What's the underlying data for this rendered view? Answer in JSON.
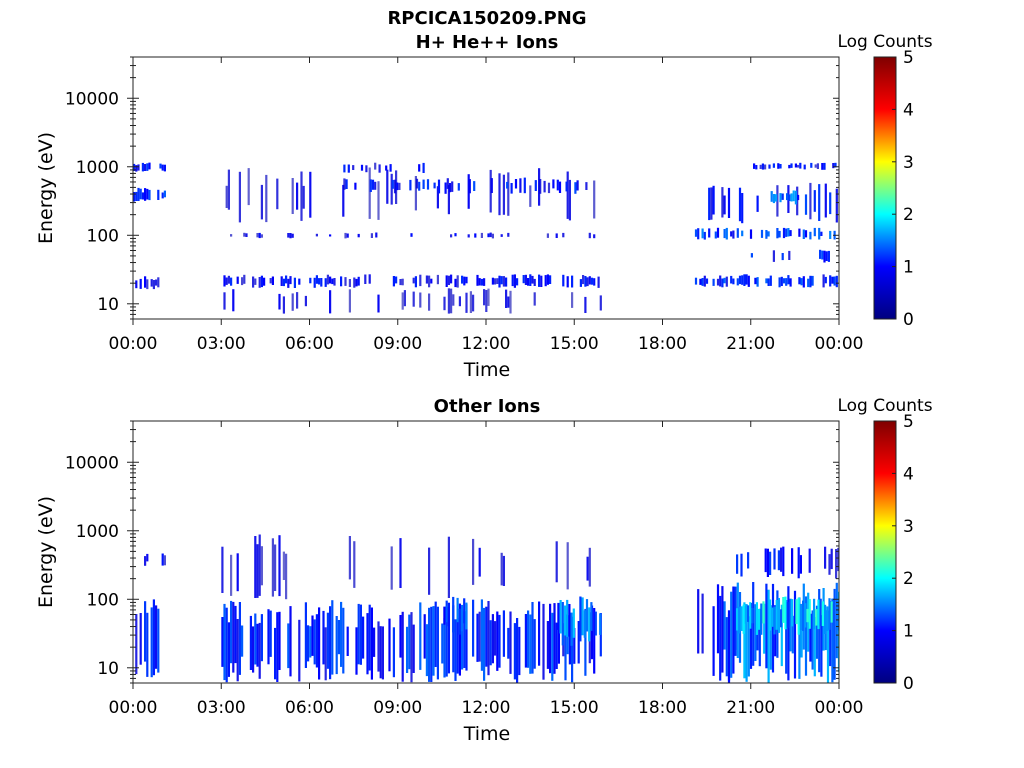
{
  "figure": {
    "file_title": "RPCICA150209.PNG"
  },
  "colorbar": {
    "label": "Log Counts",
    "ticks": [
      "0",
      "1",
      "2",
      "3",
      "4",
      "5"
    ],
    "range": [
      0,
      5
    ],
    "colormap": "jet",
    "colors": [
      "#00007f",
      "#0000ff",
      "#00ffff",
      "#ffff00",
      "#ff0000",
      "#7f0000"
    ]
  },
  "chart_data": [
    {
      "type": "heatmap",
      "title": "H+ He++ Ions",
      "xlabel": "Time",
      "ylabel": "Energy (eV)",
      "x_ticks": [
        "00:00",
        "03:00",
        "06:00",
        "09:00",
        "12:00",
        "15:00",
        "18:00",
        "21:00",
        "00:00"
      ],
      "x_range_hours": [
        0,
        24
      ],
      "y_scale": "log",
      "y_ticks": [
        "10",
        "100",
        "1000",
        "10000"
      ],
      "y_range": [
        6,
        40000
      ],
      "data_gaps_hours": [
        [
          1.1,
          3.0
        ],
        [
          15.9,
          19.1
        ]
      ],
      "bands": [
        {
          "t0": 0.0,
          "t1": 1.1,
          "e_lo": 16,
          "e_hi": 26,
          "level": 0.5,
          "density": 0.45
        },
        {
          "t0": 0.0,
          "t1": 1.1,
          "e_lo": 300,
          "e_hi": 500,
          "level": 0.8,
          "density": 0.6
        },
        {
          "t0": 0.0,
          "t1": 1.1,
          "e_lo": 850,
          "e_hi": 1150,
          "level": 0.7,
          "density": 0.7
        },
        {
          "t0": 3.0,
          "t1": 15.9,
          "e_lo": 17,
          "e_hi": 27,
          "level": 0.6,
          "density": 0.55
        },
        {
          "t0": 3.0,
          "t1": 15.9,
          "e_lo": 7,
          "e_hi": 17,
          "level": 0.4,
          "density": 0.18
        },
        {
          "t0": 3.0,
          "t1": 15.9,
          "e_lo": 90,
          "e_hi": 110,
          "level": 0.5,
          "density": 0.2
        },
        {
          "t0": 3.0,
          "t1": 15.9,
          "e_lo": 150,
          "e_hi": 1000,
          "level": 0.4,
          "density": 0.12
        },
        {
          "t0": 7.0,
          "t1": 10.0,
          "e_lo": 800,
          "e_hi": 1200,
          "level": 0.6,
          "density": 0.35
        },
        {
          "t0": 7.0,
          "t1": 15.6,
          "e_lo": 400,
          "e_hi": 700,
          "level": 0.7,
          "density": 0.3
        },
        {
          "t0": 19.1,
          "t1": 24.0,
          "e_lo": 17,
          "e_hi": 27,
          "level": 0.8,
          "density": 0.6
        },
        {
          "t0": 19.1,
          "t1": 24.0,
          "e_lo": 85,
          "e_hi": 130,
          "level": 0.9,
          "density": 0.45
        },
        {
          "t0": 19.1,
          "t1": 24.0,
          "e_lo": 150,
          "e_hi": 600,
          "level": 0.7,
          "density": 0.25
        },
        {
          "t0": 21.0,
          "t1": 24.0,
          "e_lo": 900,
          "e_hi": 1150,
          "level": 0.6,
          "density": 0.5
        },
        {
          "t0": 21.6,
          "t1": 22.6,
          "e_lo": 280,
          "e_hi": 450,
          "level": 1.0,
          "density": 0.85
        },
        {
          "t0": 21.0,
          "t1": 24.0,
          "e_lo": 40,
          "e_hi": 65,
          "level": 0.7,
          "density": 0.2
        }
      ]
    },
    {
      "type": "heatmap",
      "title": "Other Ions",
      "xlabel": "Time",
      "ylabel": "Energy (eV)",
      "x_ticks": [
        "00:00",
        "03:00",
        "06:00",
        "09:00",
        "12:00",
        "15:00",
        "18:00",
        "21:00",
        "00:00"
      ],
      "x_range_hours": [
        0,
        24
      ],
      "y_scale": "log",
      "y_ticks": [
        "10",
        "100",
        "1000",
        "10000"
      ],
      "y_range": [
        6,
        40000
      ],
      "data_gaps_hours": [
        [
          1.1,
          3.0
        ],
        [
          15.9,
          19.1
        ]
      ],
      "bands": [
        {
          "t0": 0.0,
          "t1": 1.1,
          "e_lo": 7,
          "e_hi": 100,
          "level": 0.7,
          "density": 0.65
        },
        {
          "t0": 0.0,
          "t1": 1.1,
          "e_lo": 300,
          "e_hi": 500,
          "level": 0.5,
          "density": 0.4
        },
        {
          "t0": 3.0,
          "t1": 15.9,
          "e_lo": 6,
          "e_hi": 100,
          "level": 0.8,
          "density": 0.75
        },
        {
          "t0": 3.0,
          "t1": 15.9,
          "e_lo": 100,
          "e_hi": 900,
          "level": 0.4,
          "density": 0.14
        },
        {
          "t0": 14.2,
          "t1": 15.9,
          "e_lo": 20,
          "e_hi": 110,
          "level": 1.1,
          "density": 0.8
        },
        {
          "t0": 10.4,
          "t1": 11.3,
          "e_lo": 30,
          "e_hi": 110,
          "level": 0.9,
          "density": 0.6
        },
        {
          "t0": 19.1,
          "t1": 20.5,
          "e_lo": 6,
          "e_hi": 200,
          "level": 0.6,
          "density": 0.55
        },
        {
          "t0": 20.0,
          "t1": 24.0,
          "e_lo": 6,
          "e_hi": 180,
          "level": 1.1,
          "density": 0.9
        },
        {
          "t0": 20.5,
          "t1": 24.0,
          "e_lo": 30,
          "e_hi": 110,
          "level": 1.5,
          "density": 0.85
        },
        {
          "t0": 20.5,
          "t1": 24.0,
          "e_lo": 200,
          "e_hi": 600,
          "level": 0.7,
          "density": 0.35
        }
      ]
    }
  ]
}
